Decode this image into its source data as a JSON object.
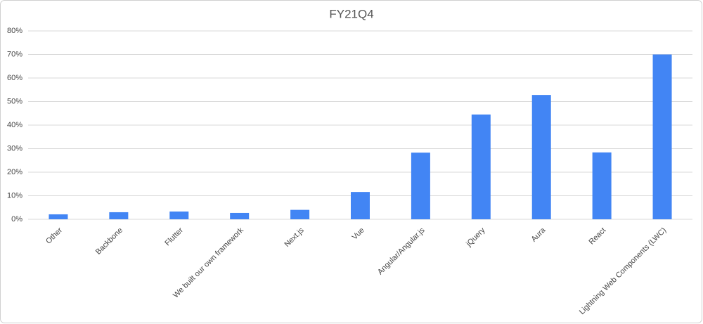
{
  "chart_data": {
    "type": "bar",
    "title": "FY21Q4",
    "categories": [
      "Other",
      "Backbone",
      "Flutter",
      "We built our own framework",
      "Next.js",
      "Vue",
      "Angular/Angular.js",
      "jQuery",
      "Aura",
      "React",
      "Lightning Web Components (LWC)"
    ],
    "values": [
      2.1,
      3.0,
      3.3,
      2.7,
      4.0,
      11.6,
      28.3,
      44.5,
      52.8,
      28.4,
      70.0
    ],
    "color": "#4285f4",
    "ylim": [
      0,
      80
    ],
    "yticks": [
      {
        "value": 0,
        "label": "0%"
      },
      {
        "value": 10,
        "label": "10%"
      },
      {
        "value": 20,
        "label": "20%"
      },
      {
        "value": 30,
        "label": "30%"
      },
      {
        "value": 40,
        "label": "40%"
      },
      {
        "value": 50,
        "label": "50%"
      },
      {
        "value": 60,
        "label": "60%"
      },
      {
        "value": 70,
        "label": "70%"
      },
      {
        "value": 80,
        "label": "80%"
      }
    ],
    "grid": true
  }
}
